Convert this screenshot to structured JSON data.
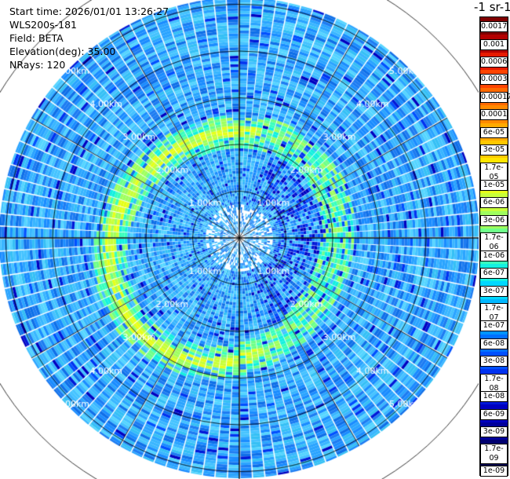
{
  "header": {
    "start_time": "Start time: 2026/01/01 13:26:27",
    "instrument": "WLS200s-181",
    "field": "Field: BETA",
    "elevation": "Elevation(deg): 35.00",
    "nrays": "NRays: 120"
  },
  "colorbar": {
    "title": "-1 sr-1",
    "labels": [
      "0.0017",
      "0.001",
      "0.0006",
      "0.0003",
      "0.00017",
      "0.0001",
      "6e-05",
      "3e-05",
      "1.7e-05",
      "1e-05",
      "6e-06",
      "3e-06",
      "1.7e-06",
      "1e-06",
      "6e-07",
      "3e-07",
      "1.7e-07",
      "1e-07",
      "6e-08",
      "3e-08",
      "1.7e-08",
      "1e-08",
      "6e-09",
      "3e-09",
      "1.7e-09",
      "1e-09"
    ],
    "colors": [
      "#800000",
      "#b30000",
      "#e61a00",
      "#ff4400",
      "#ff6a00",
      "#ff8a00",
      "#ffaa00",
      "#ffc800",
      "#ffe600",
      "#e6ff1a",
      "#c8ff3a",
      "#9fff5f",
      "#6eff8a",
      "#3affbd",
      "#14f0e0",
      "#00d8ff",
      "#00b8ff",
      "#0094ff",
      "#0070ff",
      "#0050ff",
      "#0032f0",
      "#0018d8",
      "#0000c0",
      "#00009a",
      "#000070",
      "#000050"
    ]
  },
  "chart_data": {
    "type": "ppi",
    "field": "BETA",
    "elevation_deg": 35.0,
    "n_rays": 120,
    "range_rings_km": [
      1,
      2,
      3,
      4,
      5,
      6
    ],
    "ring_labels": [
      "1.00km",
      "2.00km",
      "3.00km",
      "4.00km",
      "5.00km"
    ],
    "features": {
      "background_level": "1e-07 to 3e-08",
      "ring_echo_level": "1.7e-05 to 1.7e-06",
      "ring_echo_range_km": 2.4
    }
  }
}
